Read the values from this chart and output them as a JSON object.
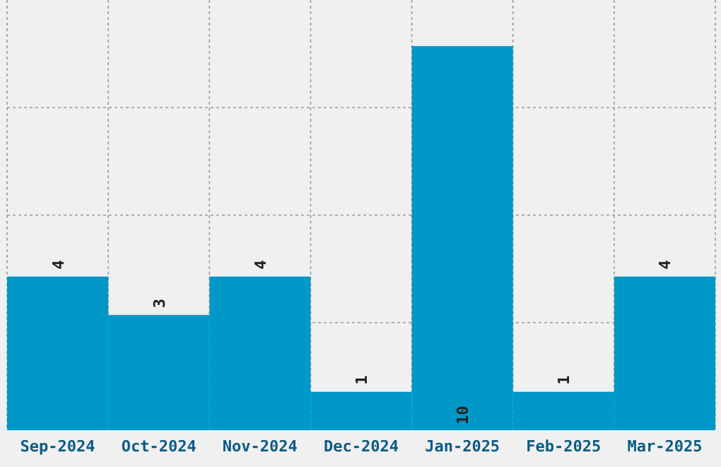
{
  "chart_data": {
    "type": "bar",
    "categories": [
      "Sep-2024",
      "Oct-2024",
      "Nov-2024",
      "Dec-2024",
      "Jan-2025",
      "Feb-2025",
      "Mar-2025"
    ],
    "values": [
      4,
      3,
      4,
      1,
      10,
      1,
      4
    ],
    "color": "#0097c9",
    "ylim": [
      0,
      11.2
    ],
    "yticks": [
      {
        "value": 2.8,
        "label": null
      },
      {
        "value": 5.6,
        "label": null
      },
      {
        "value": 8.4,
        "label": null
      }
    ],
    "tick_labels": "x",
    "grid": true,
    "data_labels": true
  }
}
